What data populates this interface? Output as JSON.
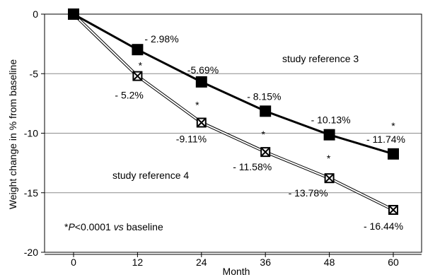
{
  "chart_data": {
    "type": "line",
    "title": "",
    "xlabel": "Month",
    "ylabel": "Weight change in % from baseline",
    "x": [
      0,
      12,
      24,
      36,
      48,
      60
    ],
    "xlim": [
      0,
      60
    ],
    "ylim": [
      -20,
      0
    ],
    "xticks": [
      "0",
      "12",
      "24",
      "36",
      "48",
      "60"
    ],
    "yticks": [
      "0",
      "-5",
      "-10",
      "-15",
      "-20"
    ],
    "grid": "horizontal",
    "series": [
      {
        "name": "study reference 3",
        "marker": "filled-square",
        "color": "#000000",
        "values": [
          0,
          -2.98,
          -5.69,
          -8.15,
          -10.13,
          -11.74
        ],
        "point_labels": [
          "",
          "- 2.98%",
          "-5.69%",
          "- 8.15%",
          "- 10.13%",
          "- 11.74%"
        ],
        "significance": [
          "",
          "",
          "",
          "",
          "",
          "*"
        ]
      },
      {
        "name": "study reference 4",
        "marker": "crossed-square",
        "color": "#000000",
        "values": [
          0,
          -5.2,
          -9.11,
          -11.58,
          -13.78,
          -16.44
        ],
        "point_labels": [
          "",
          "- 5.2%",
          "-9.11%",
          "- 11.58%",
          "- 13.78%",
          "- 16.44%"
        ],
        "significance": [
          "",
          "*",
          "*",
          "*",
          "*",
          ""
        ]
      }
    ],
    "annotations": {
      "footnote_star": "*",
      "footnote_p": "P",
      "footnote_mid": "<0.0001 ",
      "footnote_vs": "vs",
      "footnote_end": " baseline"
    }
  }
}
